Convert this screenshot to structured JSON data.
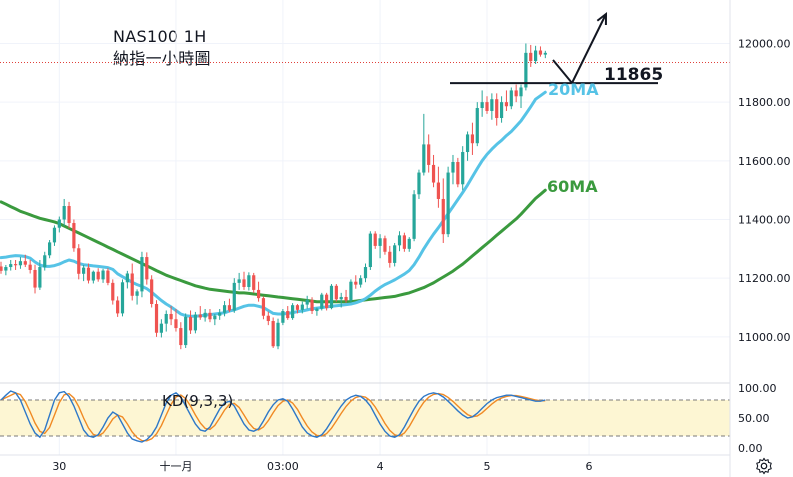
{
  "chart_data": {
    "type": "candlestick",
    "title": "NAS100 1H",
    "subtitle": "納指一小時圖",
    "symbol": "NAS100",
    "timeframe": "1H",
    "ylim": [
      10870,
      12080
    ],
    "yticks": [
      {
        "value": 12000,
        "label": "12000.00"
      },
      {
        "value": 11800,
        "label": "11800.00"
      },
      {
        "value": 11600,
        "label": "11600.00"
      },
      {
        "value": 11400,
        "label": "11400.00"
      },
      {
        "value": 11200,
        "label": "11200.00"
      },
      {
        "value": 11000,
        "label": "11000.00"
      }
    ],
    "xticks": [
      {
        "i": 12,
        "label": "30"
      },
      {
        "i": 36,
        "label": "十一月"
      },
      {
        "i": 58,
        "label": "03:00"
      },
      {
        "i": 78,
        "label": "4"
      },
      {
        "i": 100,
        "label": "5"
      },
      {
        "i": 121,
        "label": "6"
      }
    ],
    "candles": [
      [
        11240,
        11256,
        11215,
        11225
      ],
      [
        11226,
        11245,
        11210,
        11238
      ],
      [
        11238,
        11262,
        11226,
        11248
      ],
      [
        11248,
        11262,
        11228,
        11244
      ],
      [
        11244,
        11272,
        11232,
        11258
      ],
      [
        11258,
        11280,
        11238,
        11246
      ],
      [
        11246,
        11262,
        11216,
        11228
      ],
      [
        11228,
        11246,
        11148,
        11168
      ],
      [
        11168,
        11262,
        11160,
        11238
      ],
      [
        11238,
        11290,
        11226,
        11278
      ],
      [
        11278,
        11330,
        11268,
        11322
      ],
      [
        11322,
        11380,
        11310,
        11372
      ],
      [
        11372,
        11410,
        11356,
        11400
      ],
      [
        11400,
        11470,
        11378,
        11446
      ],
      [
        11446,
        11460,
        11370,
        11388
      ],
      [
        11388,
        11400,
        11290,
        11302
      ],
      [
        11302,
        11316,
        11196,
        11215
      ],
      [
        11215,
        11245,
        11190,
        11236
      ],
      [
        11236,
        11250,
        11182,
        11192
      ],
      [
        11192,
        11226,
        11182,
        11222
      ],
      [
        11222,
        11234,
        11188,
        11196
      ],
      [
        11196,
        11232,
        11184,
        11226
      ],
      [
        11226,
        11234,
        11176,
        11184
      ],
      [
        11184,
        11196,
        11110,
        11124
      ],
      [
        11124,
        11138,
        11068,
        11080
      ],
      [
        11080,
        11196,
        11070,
        11186
      ],
      [
        11186,
        11225,
        11165,
        11216
      ],
      [
        11216,
        11250,
        11124,
        11140
      ],
      [
        11140,
        11162,
        11110,
        11155
      ],
      [
        11155,
        11290,
        11135,
        11272
      ],
      [
        11272,
        11288,
        11178,
        11196
      ],
      [
        11196,
        11210,
        11100,
        11112
      ],
      [
        11112,
        11125,
        11000,
        11014
      ],
      [
        11014,
        11060,
        10998,
        11045
      ],
      [
        11045,
        11090,
        11018,
        11078
      ],
      [
        11078,
        11105,
        11040,
        11060
      ],
      [
        11060,
        11095,
        11018,
        11030
      ],
      [
        11030,
        11050,
        10958,
        10972
      ],
      [
        10972,
        11080,
        10962,
        11068
      ],
      [
        11068,
        11090,
        11010,
        11022
      ],
      [
        11022,
        11085,
        11012,
        11076
      ],
      [
        11076,
        11105,
        11058,
        11066
      ],
      [
        11066,
        11095,
        11052,
        11082
      ],
      [
        11082,
        11095,
        11050,
        11060
      ],
      [
        11060,
        11078,
        11040,
        11072
      ],
      [
        11072,
        11095,
        11058,
        11082
      ],
      [
        11082,
        11122,
        11070,
        11108
      ],
      [
        11108,
        11130,
        11084,
        11090
      ],
      [
        11090,
        11200,
        11082,
        11184
      ],
      [
        11184,
        11218,
        11160,
        11196
      ],
      [
        11196,
        11222,
        11160,
        11170
      ],
      [
        11170,
        11220,
        11158,
        11210
      ],
      [
        11210,
        11218,
        11150,
        11160
      ],
      [
        11160,
        11188,
        11120,
        11132
      ],
      [
        11132,
        11138,
        11060,
        11072
      ],
      [
        11072,
        11086,
        11040,
        11054
      ],
      [
        11054,
        11066,
        10962,
        10968
      ],
      [
        10968,
        11062,
        10958,
        11048
      ],
      [
        11048,
        11095,
        11040,
        11088
      ],
      [
        11088,
        11105,
        11058,
        11064
      ],
      [
        11064,
        11115,
        11058,
        11108
      ],
      [
        11108,
        11112,
        11080,
        11092
      ],
      [
        11092,
        11120,
        11080,
        11110
      ],
      [
        11110,
        11140,
        11096,
        11126
      ],
      [
        11126,
        11135,
        11078,
        11088
      ],
      [
        11088,
        11100,
        11072,
        11096
      ],
      [
        11096,
        11150,
        11090,
        11144
      ],
      [
        11144,
        11150,
        11090,
        11098
      ],
      [
        11098,
        11180,
        11094,
        11174
      ],
      [
        11174,
        11180,
        11120,
        11128
      ],
      [
        11128,
        11150,
        11100,
        11136
      ],
      [
        11136,
        11160,
        11116,
        11124
      ],
      [
        11124,
        11196,
        11116,
        11188
      ],
      [
        11188,
        11210,
        11164,
        11178
      ],
      [
        11178,
        11210,
        11168,
        11200
      ],
      [
        11200,
        11250,
        11186,
        11238
      ],
      [
        11238,
        11360,
        11228,
        11352
      ],
      [
        11352,
        11360,
        11300,
        11310
      ],
      [
        11310,
        11350,
        11268,
        11336
      ],
      [
        11336,
        11345,
        11280,
        11290
      ],
      [
        11290,
        11310,
        11236,
        11252
      ],
      [
        11252,
        11320,
        11240,
        11312
      ],
      [
        11312,
        11360,
        11292,
        11346
      ],
      [
        11346,
        11355,
        11290,
        11300
      ],
      [
        11300,
        11340,
        11290,
        11334
      ],
      [
        11334,
        11500,
        11326,
        11486
      ],
      [
        11486,
        11570,
        11470,
        11560
      ],
      [
        11560,
        11760,
        11550,
        11656
      ],
      [
        11656,
        11690,
        11560,
        11586
      ],
      [
        11586,
        11620,
        11510,
        11526
      ],
      [
        11526,
        11580,
        11440,
        11470
      ],
      [
        11470,
        11540,
        11320,
        11350
      ],
      [
        11350,
        11580,
        11340,
        11560
      ],
      [
        11560,
        11620,
        11520,
        11596
      ],
      [
        11596,
        11610,
        11510,
        11520
      ],
      [
        11520,
        11650,
        11500,
        11630
      ],
      [
        11630,
        11700,
        11600,
        11690
      ],
      [
        11690,
        11730,
        11620,
        11660
      ],
      [
        11660,
        11800,
        11650,
        11780
      ],
      [
        11780,
        11840,
        11750,
        11800
      ],
      [
        11800,
        11820,
        11760,
        11770
      ],
      [
        11770,
        11830,
        11740,
        11810
      ],
      [
        11810,
        11830,
        11720,
        11746
      ],
      [
        11746,
        11820,
        11730,
        11800
      ],
      [
        11800,
        11840,
        11770,
        11786
      ],
      [
        11786,
        11850,
        11776,
        11840
      ],
      [
        11840,
        11860,
        11800,
        11820
      ],
      [
        11820,
        11860,
        11780,
        11850
      ],
      [
        11850,
        12000,
        11840,
        11968
      ],
      [
        11968,
        11995,
        11920,
        11940
      ],
      [
        11940,
        11992,
        11930,
        11976
      ],
      [
        11976,
        11990,
        11955,
        11962
      ],
      [
        11962,
        11975,
        11950,
        11968
      ]
    ],
    "price_line": 11935,
    "annotation_level": {
      "value": 11865,
      "label": "11865"
    },
    "ma20": {
      "label": "20MA",
      "color": "#56c3e6",
      "values": [
        11270,
        11272,
        11275,
        11277,
        11276,
        11274,
        11268,
        11255,
        11245,
        11240,
        11240,
        11243,
        11248,
        11256,
        11262,
        11258,
        11250,
        11246,
        11244,
        11242,
        11240,
        11238,
        11236,
        11230,
        11215,
        11205,
        11196,
        11186,
        11178,
        11172,
        11164,
        11152,
        11138,
        11124,
        11112,
        11102,
        11090,
        11078,
        11072,
        11070,
        11070,
        11072,
        11074,
        11076,
        11078,
        11080,
        11082,
        11088,
        11092,
        11098,
        11104,
        11108,
        11108,
        11104,
        11100,
        11090,
        11080,
        11078,
        11078,
        11080,
        11082,
        11086,
        11088,
        11092,
        11096,
        11098,
        11100,
        11102,
        11104,
        11106,
        11108,
        11110,
        11112,
        11116,
        11122,
        11130,
        11142,
        11156,
        11168,
        11178,
        11186,
        11194,
        11204,
        11214,
        11226,
        11246,
        11272,
        11300,
        11326,
        11350,
        11372,
        11396,
        11420,
        11444,
        11468,
        11492,
        11518,
        11546,
        11574,
        11600,
        11622,
        11640,
        11656,
        11670,
        11686,
        11700,
        11718,
        11736,
        11760,
        11784,
        11810,
        11822,
        11834
      ]
    },
    "ma60": {
      "label": "60MA",
      "color": "#3a9a3e",
      "values": [
        11460,
        11452,
        11444,
        11436,
        11428,
        11422,
        11416,
        11410,
        11404,
        11400,
        11396,
        11392,
        11386,
        11378,
        11370,
        11362,
        11354,
        11346,
        11338,
        11330,
        11322,
        11314,
        11306,
        11298,
        11290,
        11282,
        11274,
        11266,
        11258,
        11250,
        11242,
        11234,
        11226,
        11218,
        11210,
        11204,
        11198,
        11192,
        11186,
        11180,
        11174,
        11170,
        11166,
        11162,
        11160,
        11158,
        11156,
        11154,
        11152,
        11150,
        11150,
        11148,
        11146,
        11144,
        11142,
        11140,
        11138,
        11136,
        11134,
        11132,
        11130,
        11128,
        11126,
        11124,
        11122,
        11120,
        11120,
        11120,
        11120,
        11120,
        11120,
        11120,
        11120,
        11122,
        11124,
        11126,
        11128,
        11130,
        11132,
        11134,
        11136,
        11138,
        11142,
        11146,
        11150,
        11156,
        11162,
        11168,
        11176,
        11184,
        11194,
        11204,
        11214,
        11224,
        11236,
        11248,
        11262,
        11276,
        11290,
        11304,
        11318,
        11332,
        11346,
        11360,
        11374,
        11388,
        11402,
        11418,
        11436,
        11454,
        11472,
        11486,
        11500
      ]
    },
    "kd": {
      "label": "KD(9,3,3)",
      "ylim": [
        0,
        100
      ],
      "yticks": [
        {
          "value": 100,
          "label": "100.00"
        },
        {
          "value": 50,
          "label": "50.00"
        },
        {
          "value": 0,
          "label": "0.00"
        }
      ],
      "band": [
        20,
        80
      ],
      "k_color": "#2e78c8",
      "d_color": "#f08a24",
      "k": [
        80,
        88,
        95,
        92,
        80,
        60,
        40,
        25,
        18,
        30,
        55,
        80,
        92,
        94,
        86,
        70,
        50,
        30,
        20,
        18,
        22,
        35,
        50,
        60,
        55,
        40,
        25,
        15,
        12,
        10,
        14,
        22,
        35,
        55,
        75,
        88,
        92,
        85,
        70,
        55,
        40,
        30,
        28,
        35,
        50,
        65,
        75,
        78,
        70,
        55,
        40,
        30,
        28,
        32,
        45,
        60,
        72,
        80,
        82,
        78,
        65,
        50,
        35,
        25,
        20,
        18,
        22,
        32,
        45,
        58,
        70,
        80,
        85,
        88,
        86,
        80,
        70,
        55,
        40,
        28,
        20,
        18,
        22,
        35,
        50,
        65,
        78,
        86,
        90,
        92,
        90,
        85,
        78,
        70,
        62,
        55,
        50,
        52,
        58,
        66,
        74,
        80,
        84,
        86,
        88,
        88,
        86,
        84,
        82,
        80,
        78,
        78,
        80
      ]
    },
    "arrow_path": [
      [
        553,
        60
      ],
      [
        572,
        83
      ],
      [
        606,
        14
      ]
    ]
  }
}
